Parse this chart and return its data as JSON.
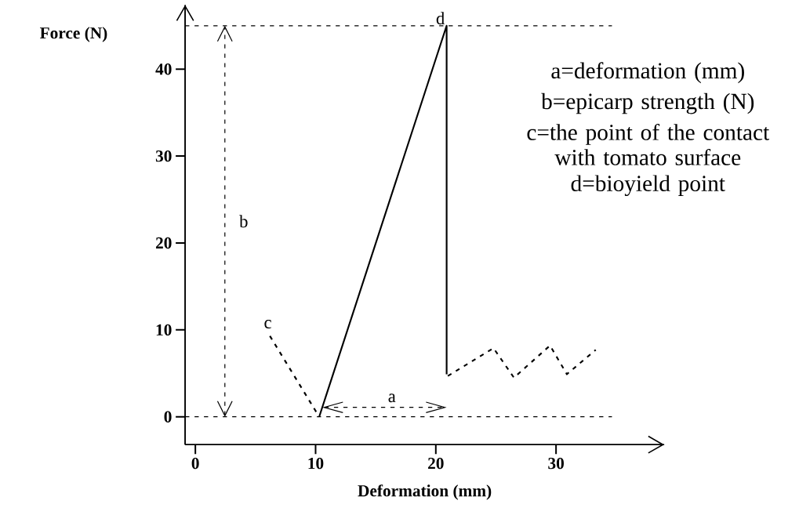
{
  "chart_data": {
    "type": "line",
    "xlabel": "Deformation (mm)",
    "ylabel": "Force (N)",
    "series": [
      {
        "color": "#000000",
        "x": [
          10.3,
          20.9,
          20.9
        ],
        "values": [
          0,
          45,
          4.9
        ],
        "line_style": "solid"
      },
      {
        "color": "#000000",
        "x": [
          6.2,
          10.3
        ],
        "values": [
          9.3,
          0
        ],
        "line_style": "dashed"
      },
      {
        "color": "#000000",
        "x": [
          21.0,
          24.8,
          26.5,
          29.5,
          30.9,
          33.3
        ],
        "values": [
          4.7,
          7.9,
          4.5,
          8.2,
          4.9,
          7.7
        ],
        "line_style": "dashed"
      }
    ],
    "xlim": [
      -0.85,
      39
    ],
    "ylim": [
      -3.2,
      47.4
    ],
    "xticks": [
      0,
      10,
      20,
      30
    ],
    "yticks": [
      0,
      10,
      20,
      30,
      40
    ],
    "grid": false,
    "marker": "none",
    "ref_lines": [
      {
        "axis": "y",
        "value": 45,
        "line_style": "dashed"
      },
      {
        "axis": "y",
        "value": 0,
        "line_style": "dashed"
      }
    ],
    "annotations": [
      "d",
      "c",
      "b",
      "a",
      "a=deformation (mm)",
      "b=epicarp strength (N)",
      "c=the point of the contact with tomato surface",
      "d=bioyield point"
    ]
  }
}
